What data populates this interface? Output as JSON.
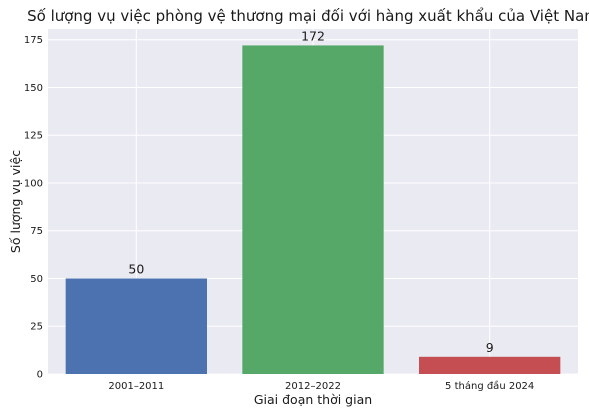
{
  "chart_data": {
    "type": "bar",
    "title": "Số lượng vụ việc phòng vệ thương mại đối với hàng xuất khẩu của Việt Nam",
    "xlabel": "Giai đoạn thời gian",
    "ylabel": "Số lượng vụ việc",
    "categories": [
      "2001–2011",
      "2012–2022",
      "5 tháng đầu 2024"
    ],
    "values": [
      50,
      172,
      9
    ],
    "data_labels": [
      "50",
      "172",
      "9"
    ],
    "colors": [
      "#4c72b0",
      "#55a868",
      "#c44e52"
    ],
    "ylim": [
      0,
      180.6
    ],
    "yticks": [
      0,
      25,
      50,
      75,
      100,
      125,
      150,
      175
    ],
    "grid": true,
    "background": "#eaeaf2",
    "legend": "none"
  }
}
